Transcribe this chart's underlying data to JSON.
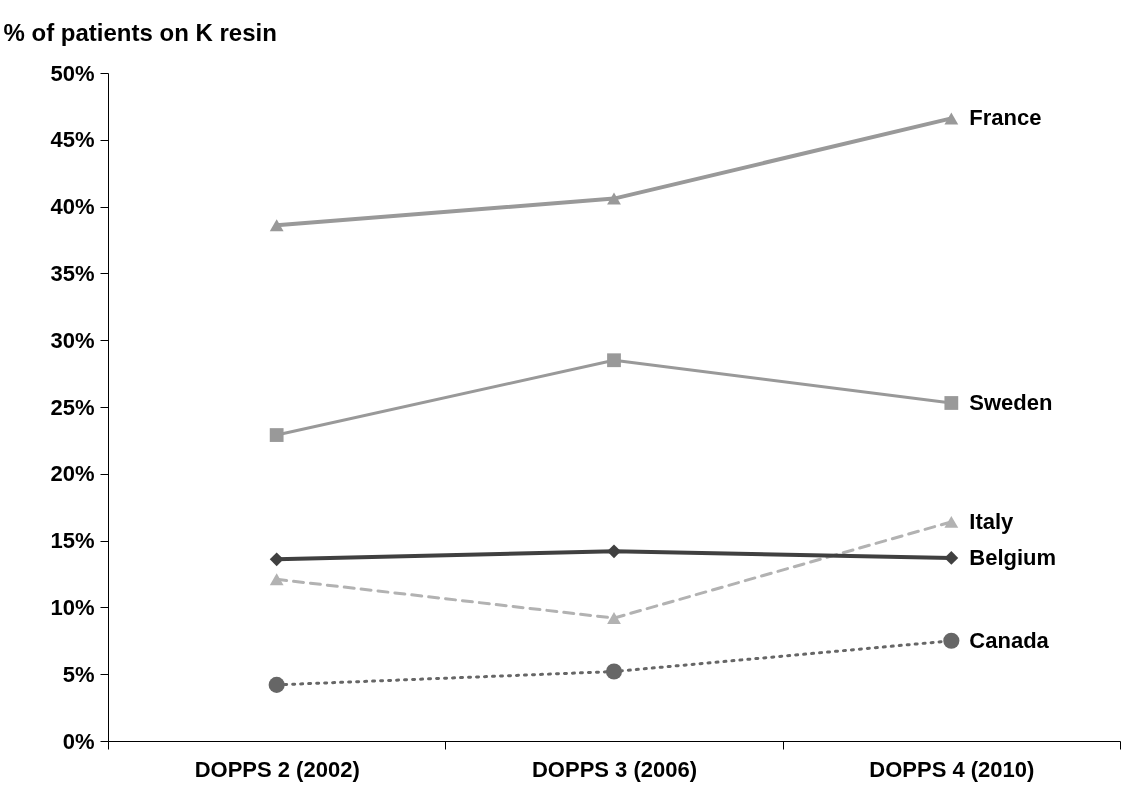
{
  "chart_data": {
    "type": "line",
    "ylabel": "% of patients on K resin",
    "categories": [
      "DOPPS 2 (2002)",
      "DOPPS 3 (2006)",
      "DOPPS 4 (2010)"
    ],
    "series": [
      {
        "name": "France",
        "color": "#999999",
        "marker": "triangle",
        "line_style": "solid",
        "values": [
          38.6,
          40.6,
          46.6
        ]
      },
      {
        "name": "Sweden",
        "color": "#999999",
        "marker": "square",
        "line_style": "solid",
        "values": [
          22.9,
          28.5,
          25.3
        ]
      },
      {
        "name": "Italy",
        "color": "#b2b2b2",
        "marker": "triangle",
        "line_style": "dashed",
        "values": [
          12.1,
          9.2,
          16.4
        ]
      },
      {
        "name": "Belgium",
        "color": "#404040",
        "marker": "diamond",
        "line_style": "solid",
        "values": [
          13.6,
          14.2,
          13.7
        ]
      },
      {
        "name": "Canada",
        "color": "#666666",
        "marker": "circle",
        "line_style": "dotted",
        "values": [
          4.2,
          5.2,
          7.5
        ]
      }
    ],
    "ylim": [
      0,
      50
    ],
    "yticks": [
      {
        "value": 0,
        "label": "0%"
      },
      {
        "value": 5,
        "label": "5%"
      },
      {
        "value": 10,
        "label": "10%"
      },
      {
        "value": 15,
        "label": "15%"
      },
      {
        "value": 20,
        "label": "20%"
      },
      {
        "value": 25,
        "label": "25%"
      },
      {
        "value": 30,
        "label": "30%"
      },
      {
        "value": 35,
        "label": "35%"
      },
      {
        "value": 40,
        "label": "40%"
      },
      {
        "value": 45,
        "label": "45%"
      },
      {
        "value": 50,
        "label": "50%"
      }
    ],
    "grid": false,
    "legend": false
  }
}
